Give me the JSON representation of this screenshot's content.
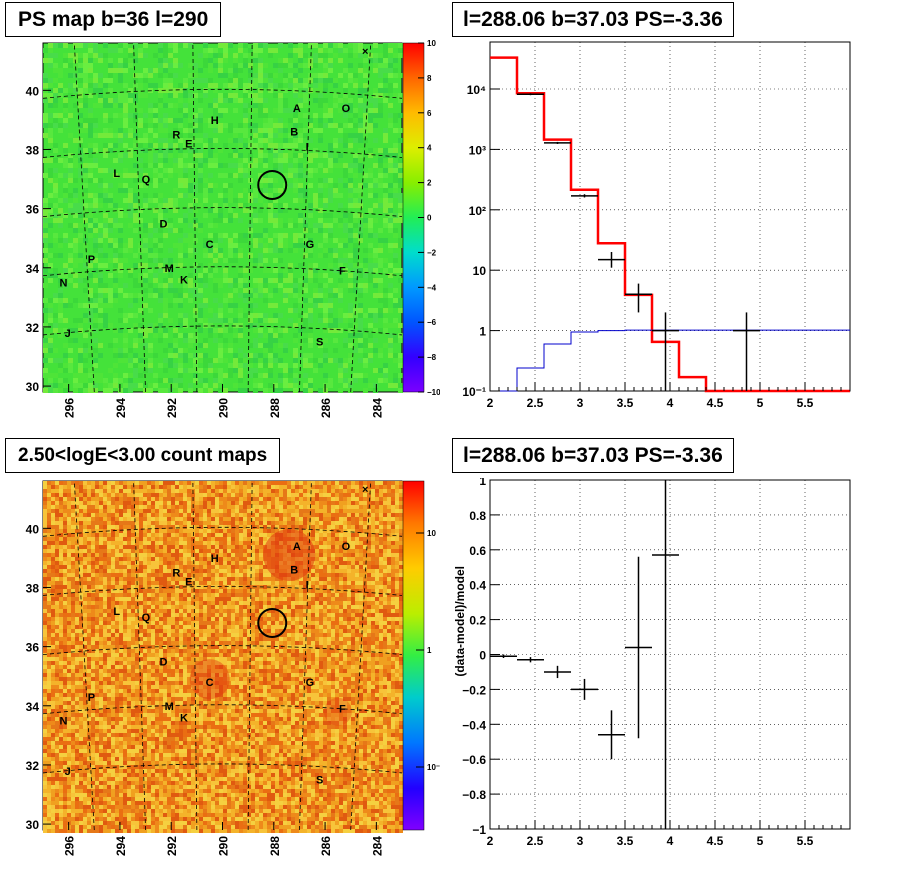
{
  "colors": {
    "map_green": "#33e633",
    "grid": "#000000",
    "model": "#ff0000",
    "data": "#000000",
    "background": "#0000cc"
  },
  "titles": {
    "ps_map": "PS map b=36 l=290",
    "spectrum": "l=288.06 b=37.03 PS=-3.36",
    "count_map": "2.50<logE<3.00 count maps",
    "residual": "l=288.06 b=37.03 PS=-3.36"
  },
  "ps_map": {
    "y_ticks": [
      "30",
      "32",
      "34",
      "36",
      "38",
      "40"
    ],
    "x_ticks": [
      "296",
      "294",
      "292",
      "290",
      "288",
      "286",
      "284"
    ],
    "colorbar_ticks": [
      "10",
      "8",
      "6",
      "4",
      "2",
      "0",
      "−2",
      "−4",
      "−6",
      "−8",
      "−10"
    ],
    "colorbar_range": [
      -10,
      10
    ]
  },
  "count_map": {
    "y_ticks": [
      "30",
      "32",
      "34",
      "36",
      "38",
      "40"
    ],
    "x_ticks": [
      "296",
      "294",
      "292",
      "290",
      "288",
      "286",
      "284"
    ],
    "colorbar_ticks": [
      "10",
      "1",
      "10⁻¹"
    ]
  },
  "sources": [
    {
      "label": "A",
      "l": 287.1,
      "b": 39.4
    },
    {
      "label": "O",
      "l": 285.2,
      "b": 39.4
    },
    {
      "label": "H",
      "l": 290.3,
      "b": 39.0
    },
    {
      "label": "B",
      "l": 287.2,
      "b": 38.6
    },
    {
      "label": "R",
      "l": 291.8,
      "b": 38.5
    },
    {
      "label": "E",
      "l": 291.3,
      "b": 38.2
    },
    {
      "label": "I",
      "l": 286.6,
      "b": 38.1
    },
    {
      "label": "L",
      "l": 294.1,
      "b": 37.2
    },
    {
      "label": "Q",
      "l": 293.0,
      "b": 37.0
    },
    {
      "label": "D",
      "l": 292.3,
      "b": 35.5
    },
    {
      "label": "C",
      "l": 290.5,
      "b": 34.8
    },
    {
      "label": "G",
      "l": 286.6,
      "b": 34.8
    },
    {
      "label": "P",
      "l": 295.1,
      "b": 34.3
    },
    {
      "label": "M",
      "l": 292.1,
      "b": 34.0
    },
    {
      "label": "K",
      "l": 291.5,
      "b": 33.6
    },
    {
      "label": "F",
      "l": 285.3,
      "b": 33.9
    },
    {
      "label": "N",
      "l": 296.2,
      "b": 33.5
    },
    {
      "label": "J",
      "l": 296.0,
      "b": 31.8
    },
    {
      "label": "S",
      "l": 286.2,
      "b": 31.5
    }
  ],
  "source_circle": {
    "l": 288.06,
    "b": 36.8
  },
  "chart_data": [
    {
      "type": "step",
      "title": "l=288.06 b=37.03 PS=-3.36",
      "xlim": [
        2,
        6
      ],
      "ylim": [
        0.1,
        60000
      ],
      "log_y": true,
      "grid": true,
      "x_ticks": [
        "2",
        "2.5",
        "3",
        "3.5",
        "4",
        "4.5",
        "5",
        "5.5"
      ],
      "y_ticks": [
        "10⁻¹",
        "1",
        "10",
        "10²",
        "10³",
        "10⁴"
      ],
      "bin_edges": [
        2.0,
        2.3,
        2.6,
        2.9,
        3.2,
        3.5,
        3.8,
        4.1,
        4.4,
        4.7,
        5.0,
        5.3,
        5.6,
        6.0
      ],
      "series": [
        {
          "name": "model",
          "color": "#ff0000",
          "values": [
            33000,
            8500,
            1450,
            215,
            28,
            3.9,
            0.65,
            0.17,
            0.1,
            0.1,
            0.1,
            0.1,
            0.1
          ]
        },
        {
          "name": "background",
          "color": "#0000cc",
          "values": [
            0.1,
            0.24,
            0.6,
            0.95,
            1.0,
            1.02,
            1.02,
            1.02,
            1.02,
            1.02,
            1.02,
            1.02,
            1.02
          ]
        }
      ],
      "data_points": [
        {
          "x": 2.45,
          "xerr": 0.15,
          "y": 8200,
          "ylo": 7900,
          "yhi": 8500
        },
        {
          "x": 2.75,
          "xerr": 0.15,
          "y": 1280,
          "ylo": 1230,
          "yhi": 1330
        },
        {
          "x": 3.05,
          "xerr": 0.15,
          "y": 170,
          "ylo": 160,
          "yhi": 181
        },
        {
          "x": 3.35,
          "xerr": 0.15,
          "y": 15,
          "ylo": 11,
          "yhi": 20
        },
        {
          "x": 3.65,
          "xerr": 0.15,
          "y": 4.0,
          "ylo": 2.0,
          "yhi": 6.0
        },
        {
          "x": 3.95,
          "xerr": 0.15,
          "y": 1.0,
          "ylo": 0.1,
          "yhi": 2.0
        },
        {
          "x": 4.85,
          "xerr": 0.15,
          "y": 1.0,
          "ylo": 0.1,
          "yhi": 2.0
        }
      ]
    },
    {
      "type": "scatter",
      "title": "l=288.06 b=37.03 PS=-3.36",
      "xlabel": "",
      "ylabel": "(data-model)/model",
      "xlim": [
        2,
        6
      ],
      "ylim": [
        -1,
        1
      ],
      "grid": true,
      "x_ticks": [
        "2",
        "2.5",
        "3",
        "3.5",
        "4",
        "4.5",
        "5",
        "5.5"
      ],
      "y_ticks": [
        "−1",
        "−0.8",
        "−0.6",
        "−0.4",
        "−0.2",
        "0",
        "0.2",
        "0.4",
        "0.6",
        "0.8",
        "1"
      ],
      "points": [
        {
          "x": 2.15,
          "xerr": 0.15,
          "y": -0.01,
          "ylo": -0.02,
          "yhi": 0.0
        },
        {
          "x": 2.45,
          "xerr": 0.15,
          "y": -0.03,
          "ylo": -0.045,
          "yhi": -0.015
        },
        {
          "x": 2.75,
          "xerr": 0.15,
          "y": -0.1,
          "ylo": -0.135,
          "yhi": -0.065
        },
        {
          "x": 3.05,
          "xerr": 0.15,
          "y": -0.2,
          "ylo": -0.26,
          "yhi": -0.14
        },
        {
          "x": 3.35,
          "xerr": 0.15,
          "y": -0.46,
          "ylo": -0.6,
          "yhi": -0.32
        },
        {
          "x": 3.65,
          "xerr": 0.15,
          "y": 0.04,
          "ylo": -0.48,
          "yhi": 0.56
        },
        {
          "x": 3.95,
          "xerr": 0.15,
          "y": 0.57,
          "ylo": -1.0,
          "yhi": 1.0
        }
      ]
    }
  ]
}
